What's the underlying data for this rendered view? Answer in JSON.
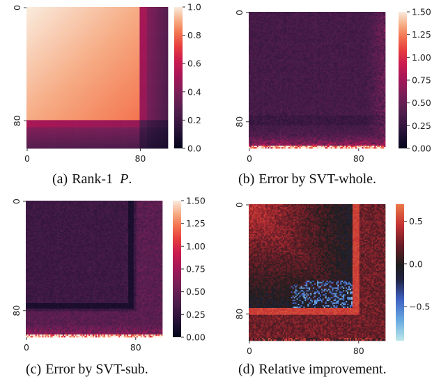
{
  "chart_data": [
    {
      "id": "a",
      "type": "heatmap",
      "caption_label": "(a)",
      "caption_text": "Rank-1",
      "caption_math": "P",
      "caption_end": ".",
      "matrix_size": 100,
      "x_tick_labels": [
        "0",
        "80"
      ],
      "x_tick_values": [
        0,
        80
      ],
      "y_tick_labels": [
        "0",
        "80"
      ],
      "y_tick_values": [
        0,
        80
      ],
      "colorbar_ticks": [
        1.0,
        0.8,
        0.6,
        0.4,
        0.2,
        0.0
      ],
      "colorbar_tick_labels": [
        "1.0",
        "0.8",
        "0.6",
        "0.4",
        "0.2",
        "0.0"
      ],
      "vmin": 0.0,
      "vmax": 1.0,
      "colormap": "rocket",
      "pattern": "rank1",
      "block_boundaries": [
        80,
        85
      ]
    },
    {
      "id": "b",
      "type": "heatmap",
      "caption_label": "(b)",
      "caption_text": "Error by SVT-whole.",
      "matrix_size": 100,
      "x_tick_labels": [
        "0",
        "80"
      ],
      "x_tick_values": [
        0,
        80
      ],
      "y_tick_labels": [
        "0",
        "80"
      ],
      "y_tick_values": [
        0,
        80
      ],
      "colorbar_ticks": [
        1.5,
        1.25,
        1.0,
        0.75,
        0.5,
        0.25,
        0.0
      ],
      "colorbar_tick_labels": [
        "1.50",
        "1.25",
        "1.00",
        "0.75",
        "0.50",
        "0.25",
        "0.00"
      ],
      "vmin": 0.0,
      "vmax": 1.5,
      "colormap": "rocket",
      "pattern": "error_whole"
    },
    {
      "id": "c",
      "type": "heatmap",
      "caption_label": "(c)",
      "caption_text": "Error by SVT-sub.",
      "matrix_size": 100,
      "x_tick_labels": [
        "0",
        "80"
      ],
      "x_tick_values": [
        0,
        80
      ],
      "y_tick_labels": [
        "0",
        "80"
      ],
      "y_tick_values": [
        0,
        80
      ],
      "colorbar_ticks": [
        1.5,
        1.25,
        1.0,
        0.75,
        0.5,
        0.25,
        0.0
      ],
      "colorbar_tick_labels": [
        "1.50",
        "1.25",
        "1.00",
        "0.75",
        "0.50",
        "0.25",
        "0.00"
      ],
      "vmin": 0.0,
      "vmax": 1.5,
      "colormap": "rocket",
      "pattern": "error_sub"
    },
    {
      "id": "d",
      "type": "heatmap",
      "caption_label": "(d)",
      "caption_text": "Relative improvement.",
      "matrix_size": 100,
      "x_tick_labels": [
        "0",
        "80"
      ],
      "x_tick_values": [
        0,
        80
      ],
      "y_tick_labels": [
        "0",
        "80"
      ],
      "y_tick_values": [
        0,
        80
      ],
      "colorbar_ticks": [
        0.5,
        0.0,
        -0.5
      ],
      "colorbar_tick_labels": [
        "0.5",
        "0.0",
        "−0.5"
      ],
      "vmin": -0.9,
      "vmax": 0.7,
      "colormap": "icefire",
      "pattern": "improvement"
    }
  ]
}
